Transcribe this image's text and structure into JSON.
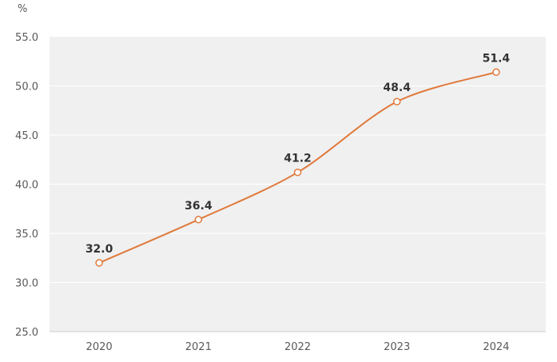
{
  "chart_data": {
    "type": "line",
    "categories": [
      "2020",
      "2021",
      "2022",
      "2023",
      "2024"
    ],
    "series": [
      {
        "name": "percentage",
        "values": [
          32.0,
          36.4,
          41.2,
          48.4,
          51.4
        ]
      }
    ],
    "data_labels": [
      "32.0",
      "36.4",
      "41.2",
      "48.4",
      "51.4"
    ],
    "title": "",
    "xlabel": "",
    "ylabel": "%",
    "ylim": [
      25.0,
      55.0
    ],
    "ytick_step": 5.0,
    "ytick_labels": [
      "55.0",
      "50.0",
      "45.0",
      "40.0",
      "35.0",
      "30.0",
      "25.0"
    ],
    "grid": true,
    "legend": "none",
    "smooth": true,
    "marker": "open-circle",
    "colors": {
      "line": "#e0793b",
      "marker_fill": "#ffffff",
      "marker_stroke": "#e0793b",
      "plot_background": "#f0f0f0",
      "gridline": "#ffffff",
      "axis_line": "#cccccc",
      "tick_label": "#595959",
      "data_label": "#333333"
    }
  }
}
